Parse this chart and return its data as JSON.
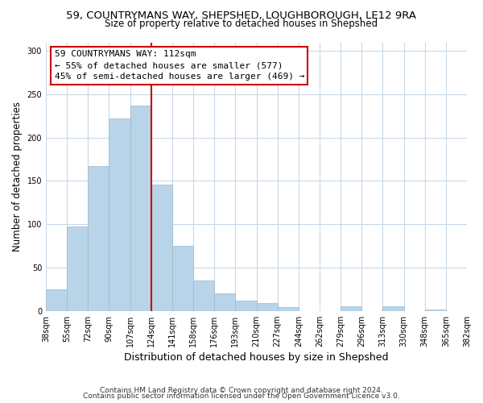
{
  "title_line1": "59, COUNTRYMANS WAY, SHEPSHED, LOUGHBOROUGH, LE12 9RA",
  "title_line2": "Size of property relative to detached houses in Shepshed",
  "xlabel": "Distribution of detached houses by size in Shepshed",
  "ylabel": "Number of detached properties",
  "bar_values": [
    25,
    97,
    167,
    222,
    237,
    146,
    75,
    35,
    20,
    12,
    9,
    4,
    0,
    0,
    5,
    0,
    5,
    0,
    2,
    0
  ],
  "bar_labels": [
    "38sqm",
    "55sqm",
    "72sqm",
    "90sqm",
    "107sqm",
    "124sqm",
    "141sqm",
    "158sqm",
    "176sqm",
    "193sqm",
    "210sqm",
    "227sqm",
    "244sqm",
    "262sqm",
    "279sqm",
    "296sqm",
    "313sqm",
    "330sqm",
    "348sqm",
    "365sqm",
    "382sqm"
  ],
  "bar_color": "#b8d4e8",
  "vline_color": "#cc0000",
  "vline_x": 5,
  "annotation_text_line1": "59 COUNTRYMANS WAY: 112sqm",
  "annotation_text_line2": "← 55% of detached houses are smaller (577)",
  "annotation_text_line3": "45% of semi-detached houses are larger (469) →",
  "annotation_box_facecolor": "#ffffff",
  "annotation_box_edgecolor": "#cc0000",
  "ylim": [
    0,
    310
  ],
  "yticks": [
    0,
    50,
    100,
    150,
    200,
    250,
    300
  ],
  "footer_line1": "Contains HM Land Registry data © Crown copyright and database right 2024.",
  "footer_line2": "Contains public sector information licensed under the Open Government Licence v3.0.",
  "background_color": "#ffffff",
  "grid_color": "#c8d8e8",
  "title_fontsize": 9.5,
  "subtitle_fontsize": 8.5,
  "ylabel_fontsize": 8.5,
  "xlabel_fontsize": 9,
  "tick_fontsize": 7,
  "annotation_fontsize": 8,
  "footer_fontsize": 6.5
}
